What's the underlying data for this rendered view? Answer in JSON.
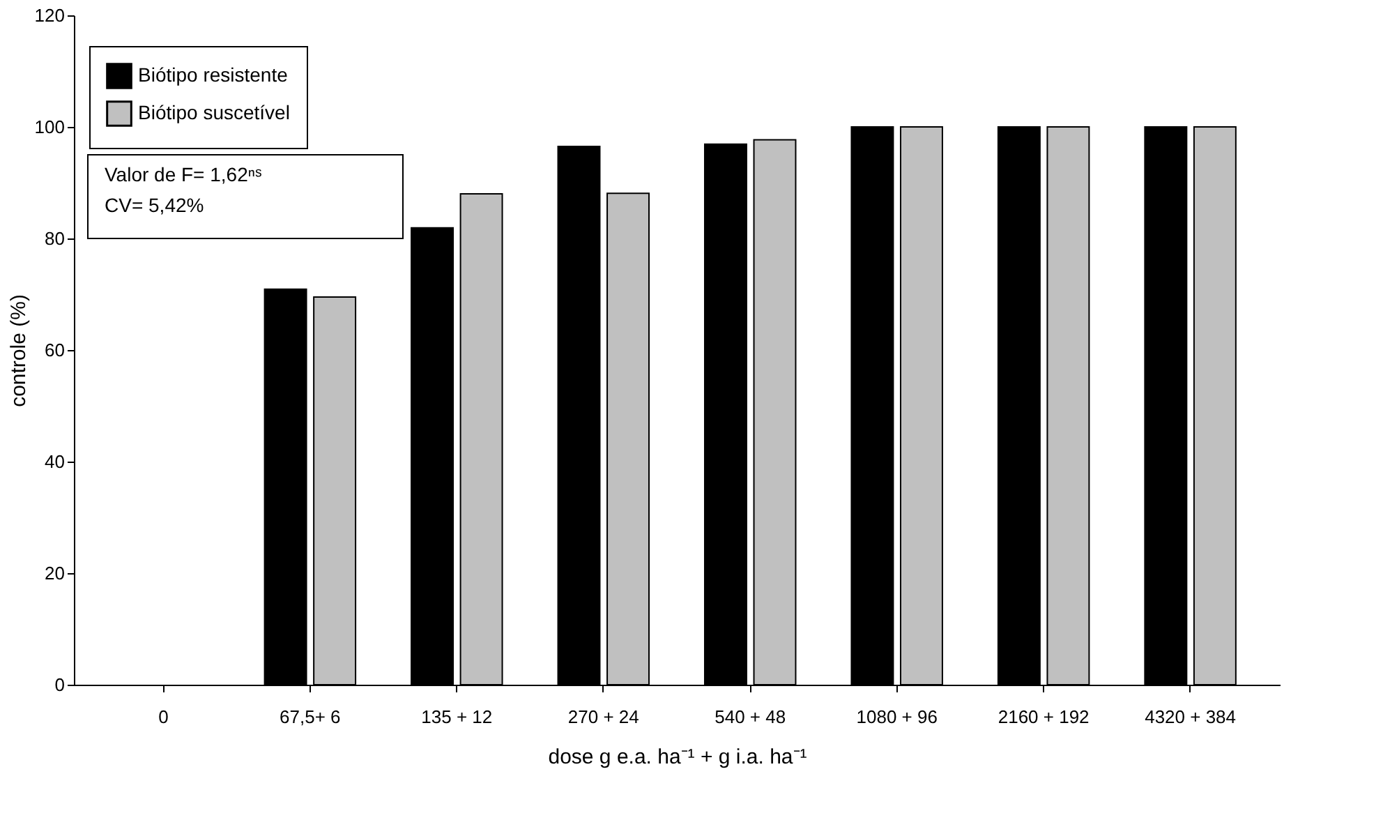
{
  "chart_data": {
    "type": "bar",
    "xlabel": "dose g e.a. ha⁻¹ + g i.a. ha⁻¹",
    "ylabel": "controle (%)",
    "categories": [
      "0",
      "67,5+ 6",
      "135 + 12",
      "270 + 24",
      "540 + 48",
      "1080 + 96",
      "2160 + 192",
      "4320 + 384"
    ],
    "series": [
      {
        "name": "Biótipo resistente",
        "color": "#000000",
        "values": [
          0,
          70.9,
          81.9,
          96.5,
          96.9,
          100,
          100,
          100
        ]
      },
      {
        "name": "Biótipo suscetível",
        "color": "#c0c0c0",
        "values": [
          0,
          69.5,
          88.0,
          88.1,
          97.7,
          100,
          100,
          100
        ]
      }
    ],
    "ylim": [
      0,
      120
    ],
    "yticks": [
      0,
      20,
      40,
      60,
      80,
      100,
      120
    ],
    "annotations": [
      "Valor de F= 1,62ⁿˢ",
      "CV= 5,42%"
    ],
    "legend": "top left",
    "grid": false
  }
}
